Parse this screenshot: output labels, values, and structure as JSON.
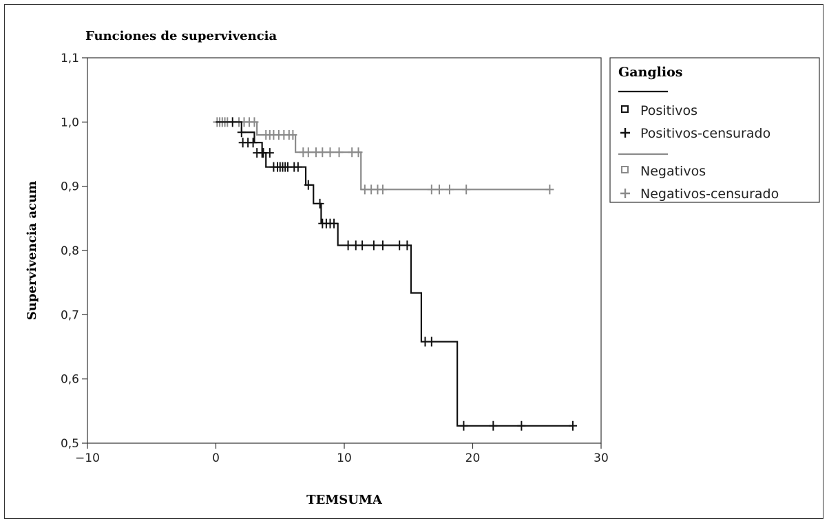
{
  "chart_data": {
    "type": "line",
    "title": "Funciones de supervivencia",
    "xlabel": "TEMSUMA",
    "ylabel": "Supervivencia acum",
    "xlim": [
      -10,
      30
    ],
    "ylim": [
      0.5,
      1.1
    ],
    "xticks": [
      "-10",
      "0",
      "10",
      "20",
      "30"
    ],
    "yticks": [
      "0,5",
      "0,6",
      "0,7",
      "0,8",
      "0,9",
      "1,0",
      "1,1"
    ],
    "grid": false,
    "legend": {
      "title": "Ganglios",
      "placement": "right",
      "entries": [
        "Positivos",
        "Positivos-censurado",
        "Negativos",
        "Negativos-censurado"
      ]
    },
    "series": [
      {
        "name": "Positivos",
        "color": "#111111",
        "step_x": [
          0,
          2.0,
          3.0,
          3.6,
          3.9,
          7.0,
          7.6,
          8.2,
          9.5,
          15.2,
          16.0,
          18.8,
          27.8
        ],
        "step_y": [
          1.0,
          0.984,
          0.968,
          0.952,
          0.93,
          0.902,
          0.873,
          0.842,
          0.808,
          0.734,
          0.658,
          0.527,
          0.527
        ],
        "censored": [
          [
            1.3,
            1.0
          ],
          [
            2.0,
            0.984
          ],
          [
            2.1,
            0.968
          ],
          [
            2.5,
            0.968
          ],
          [
            2.9,
            0.968
          ],
          [
            3.2,
            0.952
          ],
          [
            3.6,
            0.952
          ],
          [
            3.65,
            0.952
          ],
          [
            3.7,
            0.952
          ],
          [
            4.2,
            0.952
          ],
          [
            4.5,
            0.93
          ],
          [
            4.8,
            0.93
          ],
          [
            5.0,
            0.93
          ],
          [
            5.2,
            0.93
          ],
          [
            5.4,
            0.93
          ],
          [
            5.6,
            0.93
          ],
          [
            6.1,
            0.93
          ],
          [
            6.4,
            0.93
          ],
          [
            7.2,
            0.902
          ],
          [
            8.1,
            0.873
          ],
          [
            8.3,
            0.842
          ],
          [
            8.6,
            0.842
          ],
          [
            8.9,
            0.842
          ],
          [
            9.2,
            0.842
          ],
          [
            10.3,
            0.808
          ],
          [
            10.9,
            0.808
          ],
          [
            11.4,
            0.808
          ],
          [
            12.3,
            0.808
          ],
          [
            13.0,
            0.808
          ],
          [
            14.3,
            0.808
          ],
          [
            14.9,
            0.808
          ],
          [
            16.3,
            0.658
          ],
          [
            16.8,
            0.658
          ],
          [
            19.3,
            0.527
          ],
          [
            21.6,
            0.527
          ],
          [
            23.8,
            0.527
          ],
          [
            27.8,
            0.527
          ]
        ]
      },
      {
        "name": "Negativos",
        "color": "#8a8a8a",
        "step_x": [
          0,
          3.2,
          6.2,
          11.3,
          26.0
        ],
        "step_y": [
          1.0,
          0.98,
          0.953,
          0.895,
          0.895
        ],
        "censored": [
          [
            0.1,
            1.0
          ],
          [
            0.3,
            1.0
          ],
          [
            0.5,
            1.0
          ],
          [
            0.7,
            1.0
          ],
          [
            0.9,
            1.0
          ],
          [
            1.8,
            1.0
          ],
          [
            2.2,
            1.0
          ],
          [
            2.6,
            1.0
          ],
          [
            3.0,
            1.0
          ],
          [
            3.9,
            0.98
          ],
          [
            4.2,
            0.98
          ],
          [
            4.5,
            0.98
          ],
          [
            4.9,
            0.98
          ],
          [
            5.3,
            0.98
          ],
          [
            5.7,
            0.98
          ],
          [
            6.0,
            0.98
          ],
          [
            6.8,
            0.953
          ],
          [
            7.2,
            0.953
          ],
          [
            7.8,
            0.953
          ],
          [
            8.3,
            0.953
          ],
          [
            8.9,
            0.953
          ],
          [
            9.6,
            0.953
          ],
          [
            10.6,
            0.953
          ],
          [
            11.1,
            0.953
          ],
          [
            11.6,
            0.895
          ],
          [
            12.1,
            0.895
          ],
          [
            12.6,
            0.895
          ],
          [
            13.0,
            0.895
          ],
          [
            16.8,
            0.895
          ],
          [
            17.4,
            0.895
          ],
          [
            18.2,
            0.895
          ],
          [
            19.5,
            0.895
          ],
          [
            26.0,
            0.895
          ]
        ]
      }
    ]
  }
}
